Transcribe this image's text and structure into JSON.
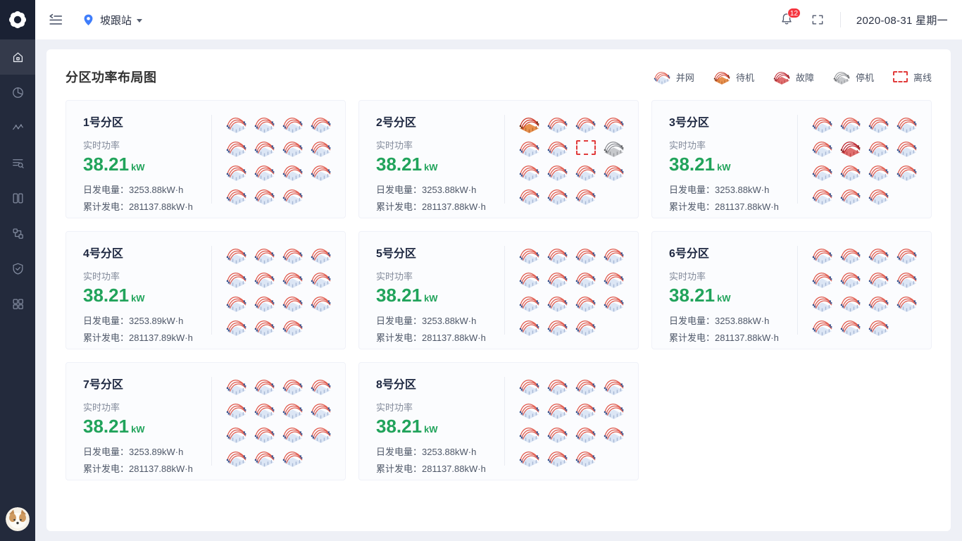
{
  "sidebar": {
    "items": [
      {
        "icon": "home-icon",
        "active": true
      },
      {
        "icon": "pie-chart-icon",
        "active": false
      },
      {
        "icon": "activity-icon",
        "active": false
      },
      {
        "icon": "list-search-icon",
        "active": false
      },
      {
        "icon": "layout-icon",
        "active": false
      },
      {
        "icon": "flow-nodes-icon",
        "active": false
      },
      {
        "icon": "shield-check-icon",
        "active": false
      },
      {
        "icon": "app-grid-icon",
        "active": false
      }
    ],
    "logo_icon": "gear-logo-icon",
    "avatar_icon": "dog-avatar"
  },
  "header": {
    "station": "坡跟站",
    "notification_count": "12",
    "date": "2020-08-31 星期一"
  },
  "panel": {
    "title": "分区功率布局图",
    "legend": [
      {
        "status": "normal",
        "label": "并网"
      },
      {
        "status": "standby",
        "label": "待机"
      },
      {
        "status": "fault",
        "label": "故障"
      },
      {
        "status": "shutdown",
        "label": "停机"
      },
      {
        "status": "offline",
        "label": "离线"
      }
    ]
  },
  "card_labels": {
    "power_label": "实时功率",
    "power_unit": "kW",
    "daily_label": "日发电量：",
    "total_label": "累计发电："
  },
  "cards": [
    {
      "name": "1号分区",
      "power": "38.21",
      "daily": "3253.88kW·h",
      "total": "281137.88kW·h",
      "units": [
        "normal",
        "normal",
        "normal",
        "normal",
        "normal",
        "normal",
        "normal",
        "normal",
        "normal",
        "normal",
        "normal",
        "normal",
        "normal",
        "normal",
        "normal"
      ]
    },
    {
      "name": "2号分区",
      "power": "38.21",
      "daily": "3253.88kW·h",
      "total": "281137.88kW·h",
      "units": [
        "standby",
        "normal",
        "normal",
        "normal",
        "normal",
        "normal",
        "offline",
        "shutdown",
        "normal",
        "normal",
        "normal",
        "normal",
        "normal",
        "normal",
        "normal"
      ]
    },
    {
      "name": "3号分区",
      "power": "38.21",
      "daily": "3253.88kW·h",
      "total": "281137.88kW·h",
      "units": [
        "normal",
        "normal",
        "normal",
        "normal",
        "normal",
        "fault",
        "normal",
        "normal",
        "normal",
        "normal",
        "normal",
        "normal",
        "normal",
        "normal",
        "normal"
      ]
    },
    {
      "name": "4号分区",
      "power": "38.21",
      "daily": "3253.89kW·h",
      "total": "281137.89kW·h",
      "units": [
        "normal",
        "normal",
        "normal",
        "normal",
        "normal",
        "normal",
        "normal",
        "normal",
        "normal",
        "normal",
        "normal",
        "normal",
        "normal",
        "normal",
        "normal"
      ]
    },
    {
      "name": "5号分区",
      "power": "38.21",
      "daily": "3253.88kW·h",
      "total": "281137.88kW·h",
      "units": [
        "normal",
        "normal",
        "normal",
        "normal",
        "normal",
        "normal",
        "normal",
        "normal",
        "normal",
        "normal",
        "normal",
        "normal",
        "normal",
        "normal",
        "normal"
      ]
    },
    {
      "name": "6号分区",
      "power": "38.21",
      "daily": "3253.88kW·h",
      "total": "281137.88kW·h",
      "units": [
        "normal",
        "normal",
        "normal",
        "normal",
        "normal",
        "normal",
        "normal",
        "normal",
        "normal",
        "normal",
        "normal",
        "normal",
        "normal",
        "normal",
        "normal"
      ]
    },
    {
      "name": "7号分区",
      "power": "38.21",
      "daily": "3253.89kW·h",
      "total": "281137.88kW·h",
      "units": [
        "normal",
        "normal",
        "normal",
        "normal",
        "normal",
        "normal",
        "normal",
        "normal",
        "normal",
        "normal",
        "normal",
        "normal",
        "normal",
        "normal",
        "normal"
      ]
    },
    {
      "name": "8号分区",
      "power": "38.21",
      "daily": "3253.88kW·h",
      "total": "281137.88kW·h",
      "units": [
        "normal",
        "normal",
        "normal",
        "normal",
        "normal",
        "normal",
        "normal",
        "normal",
        "normal",
        "normal",
        "normal",
        "normal",
        "normal",
        "normal",
        "normal"
      ]
    }
  ],
  "colors": {
    "accent_green": "#21a35b",
    "badge_red": "#f5353f",
    "pin_blue": "#3f7dfb",
    "offline_red": "#e13c3c",
    "sidebar_bg": "#232a3c"
  }
}
